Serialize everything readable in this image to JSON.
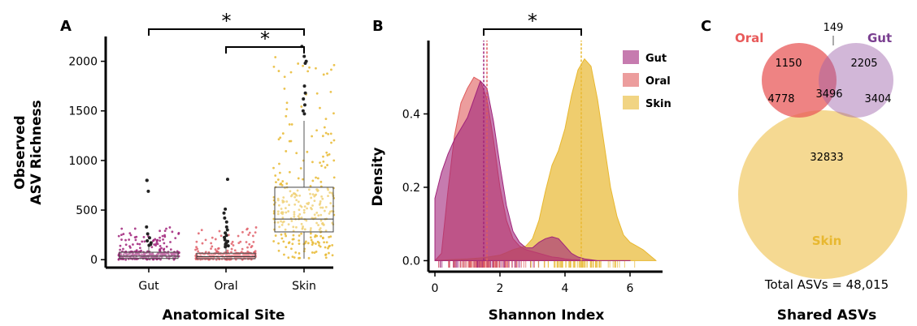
{
  "chart_data": [
    {
      "panel": "A",
      "type": "box",
      "xlabel": "Anatomical Site",
      "ylabel_lines": [
        "Observed",
        "ASV Richness"
      ],
      "categories": [
        "Gut",
        "Oral",
        "Skin"
      ],
      "yticks": [
        0,
        500,
        1000,
        1500,
        2000
      ],
      "ylim": [
        -80,
        2250
      ],
      "colors": {
        "Gut": "#a0237a",
        "Oral": "#e0606a",
        "Skin": "#e8b830"
      },
      "boxes": [
        {
          "name": "Gut",
          "q1": 12,
          "median": 35,
          "q3": 75,
          "whisker_low": 0,
          "whisker_high": 135
        },
        {
          "name": "Oral",
          "q1": 10,
          "median": 30,
          "q3": 65,
          "whisker_low": 0,
          "whisker_high": 120
        },
        {
          "name": "Skin",
          "q1": 280,
          "median": 410,
          "q3": 730,
          "whisker_low": 10,
          "whisker_high": 1400
        }
      ],
      "outliers": {
        "Gut": [
          800,
          800,
          690,
          330,
          260,
          220,
          190,
          170,
          155,
          145
        ],
        "Oral": [
          810,
          510,
          470,
          420,
          380,
          330,
          300,
          270,
          245,
          225,
          200,
          185,
          170,
          160,
          150,
          140,
          130
        ],
        "Skin": [
          2150,
          2050,
          2000,
          1980,
          1750,
          1680,
          1620,
          1560,
          1500,
          1470
        ]
      },
      "significance": [
        {
          "from": "Gut",
          "to": "Skin",
          "label": "*"
        },
        {
          "from": "Oral",
          "to": "Skin",
          "label": "*"
        }
      ]
    },
    {
      "panel": "B",
      "type": "area",
      "xlabel": "Shannon Index",
      "ylabel": "Density",
      "xticks": [
        0,
        2,
        4,
        6
      ],
      "yticks": [
        0.0,
        0.2,
        0.4
      ],
      "xlim": [
        -0.2,
        7.0
      ],
      "ylim": [
        -0.03,
        0.6
      ],
      "legend": [
        "Gut",
        "Oral",
        "Skin"
      ],
      "legend_position": "top-right",
      "series": [
        {
          "name": "Gut",
          "color": "#a0237a",
          "mean": 1.5,
          "x": [
            0,
            0.2,
            0.4,
            0.6,
            0.8,
            1.0,
            1.2,
            1.4,
            1.6,
            1.8,
            2.0,
            2.2,
            2.4,
            2.6,
            2.8,
            3.0,
            3.2,
            3.4,
            3.6,
            3.8,
            4.0,
            4.2,
            4.4,
            4.6,
            5.0,
            5.5,
            6.0
          ],
          "y": [
            0.17,
            0.24,
            0.29,
            0.33,
            0.36,
            0.39,
            0.44,
            0.49,
            0.47,
            0.38,
            0.26,
            0.15,
            0.08,
            0.05,
            0.035,
            0.035,
            0.05,
            0.06,
            0.065,
            0.06,
            0.04,
            0.02,
            0.01,
            0.005,
            0.0,
            0.0,
            0.0
          ]
        },
        {
          "name": "Oral",
          "color": "#e05c5c",
          "mean": 1.6,
          "x": [
            0,
            0.2,
            0.4,
            0.6,
            0.8,
            1.0,
            1.2,
            1.4,
            1.6,
            1.8,
            2.0,
            2.2,
            2.4,
            2.6,
            2.8,
            3.0,
            3.2,
            3.4,
            3.6,
            3.8,
            4.0,
            4.2,
            4.4,
            4.6,
            5.0,
            5.5,
            6.0
          ],
          "y": [
            0.0,
            0.02,
            0.19,
            0.34,
            0.43,
            0.47,
            0.5,
            0.49,
            0.44,
            0.33,
            0.2,
            0.11,
            0.06,
            0.04,
            0.03,
            0.025,
            0.02,
            0.015,
            0.01,
            0.008,
            0.005,
            0.003,
            0.002,
            0.0,
            0.0,
            0.0,
            0.0
          ]
        },
        {
          "name": "Skin",
          "color": "#e8b830",
          "mean": 4.5,
          "x": [
            0,
            0.5,
            1.0,
            1.5,
            2.0,
            2.2,
            2.4,
            2.6,
            2.8,
            3.0,
            3.2,
            3.4,
            3.6,
            3.8,
            4.0,
            4.2,
            4.4,
            4.6,
            4.8,
            5.0,
            5.2,
            5.4,
            5.6,
            5.8,
            6.0,
            6.2,
            6.4,
            6.6,
            6.8
          ],
          "y": [
            0.0,
            0.003,
            0.005,
            0.008,
            0.015,
            0.022,
            0.03,
            0.035,
            0.04,
            0.06,
            0.11,
            0.19,
            0.26,
            0.3,
            0.36,
            0.45,
            0.52,
            0.55,
            0.53,
            0.44,
            0.32,
            0.2,
            0.12,
            0.07,
            0.05,
            0.04,
            0.03,
            0.015,
            0.0
          ]
        }
      ],
      "significance": [
        {
          "from": 1.5,
          "to": 4.5,
          "label": "*"
        }
      ]
    },
    {
      "panel": "C",
      "type": "venn",
      "title": "Shared ASVs",
      "total_text": "Total ASVs = 48,015",
      "sets": [
        {
          "name": "Oral",
          "color": "#e85a5a",
          "label_color": "#e85a5a"
        },
        {
          "name": "Gut",
          "color": "#9b5fa8",
          "label_color": "#7a3f90"
        },
        {
          "name": "Skin",
          "color": "#efc04a",
          "label_color": "#e8b830"
        }
      ],
      "regions": {
        "oral_only": "1150",
        "gut_only": "2205",
        "oral_gut_only": "149",
        "oral_skin_only": "4778",
        "gut_skin_only": "3404",
        "all_three": "3496",
        "skin_only": "32833"
      }
    }
  ]
}
